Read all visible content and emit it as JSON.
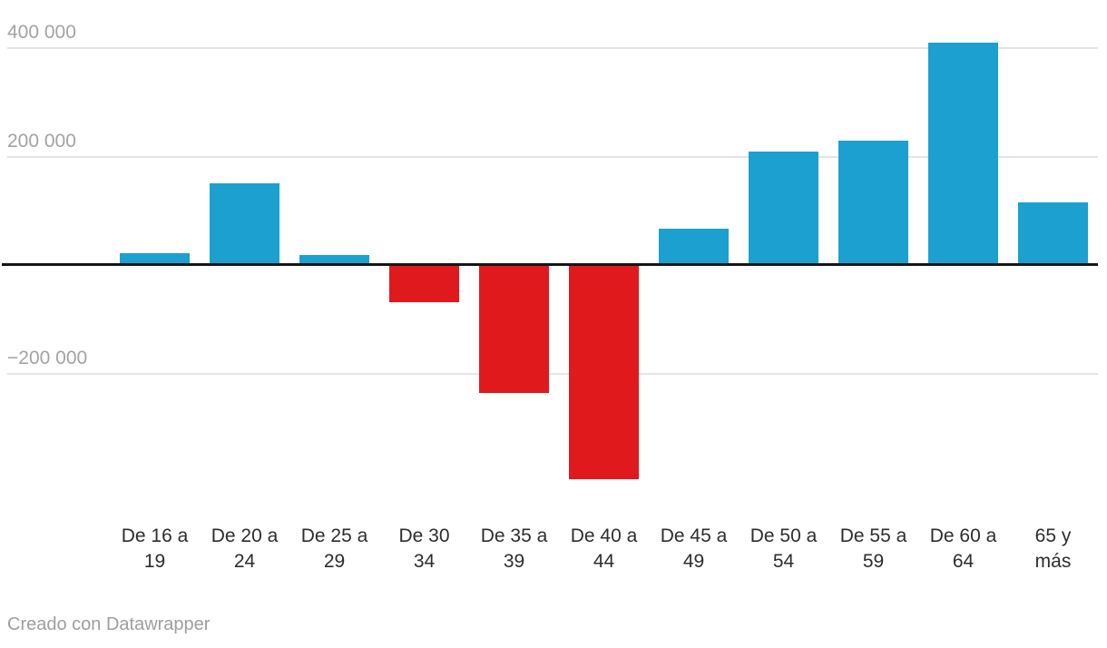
{
  "chart_data": {
    "type": "bar",
    "title": "",
    "xlabel": "",
    "ylabel": "",
    "categories": [
      [
        "De 16 a",
        "19"
      ],
      [
        "De 20 a",
        "24"
      ],
      [
        "De 25 a",
        "29"
      ],
      [
        "De 30",
        "34"
      ],
      [
        "De 35 a",
        "39"
      ],
      [
        "De 40 a",
        "44"
      ],
      [
        "De 45 a",
        "49"
      ],
      [
        "De 50 a",
        "54"
      ],
      [
        "De 55 a",
        "59"
      ],
      [
        "De 60 a",
        "64"
      ],
      [
        "65 y",
        "más"
      ]
    ],
    "values": [
      21000,
      150000,
      19000,
      -67000,
      -235000,
      -393000,
      67000,
      209000,
      229000,
      410000,
      115000
    ],
    "positive_color": "#1ba0cf",
    "negative_color": "#e0191d",
    "y_ticks": [
      {
        "label": "400 000",
        "value": 400000
      },
      {
        "label": "200 000",
        "value": 200000
      },
      {
        "label": "−200 000",
        "value": -200000
      }
    ],
    "baseline_value": 0,
    "ylim": [
      -420000,
      430000
    ],
    "grid": true,
    "legend": "none"
  },
  "footer": {
    "credit": "Creado con Datawrapper"
  }
}
